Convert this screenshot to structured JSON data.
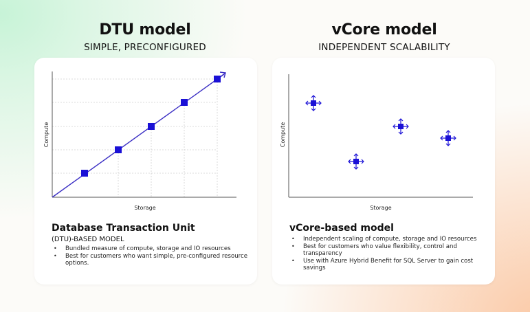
{
  "dtu": {
    "heading": "DTU model",
    "subheading": "SIMPLE, PRECONFIGURED",
    "chart_xlabel": "Storage",
    "chart_ylabel": "Compute",
    "title": "Database Transaction Unit",
    "subtitle": "(DTU)-BASED MODEL",
    "bullets": [
      "Bundled measure of compute, storage and IO resources",
      "Best for customers who want simple, pre-configured resource options."
    ]
  },
  "vcore": {
    "heading": "vCore model",
    "subheading": "INDEPENDENT SCALABILITY",
    "chart_xlabel": "Storage",
    "chart_ylabel": "Compute",
    "title": "vCore-based model",
    "bullets": [
      "Independent scaling of compute, storage and IO resources",
      "Best for customers who value flexibility, control and transparency",
      "Use with Azure Hybrid Benefit for SQL Server to gain cost savings"
    ]
  },
  "colors": {
    "marker": "#1a10d6",
    "line": "#3b2fc4",
    "axis": "#555555",
    "grid": "#cfcfcf"
  },
  "icons": {
    "vcore_marker": "four-way-arrow-icon",
    "dtu_arrow": "arrow-up-right-icon"
  }
}
